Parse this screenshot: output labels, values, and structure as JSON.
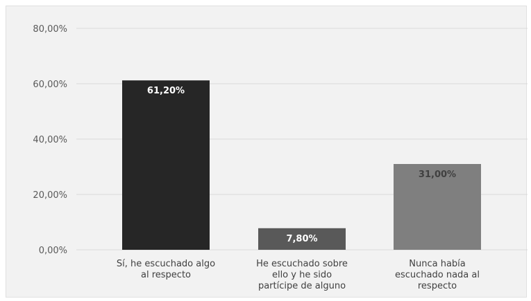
{
  "chart_data": {
    "type": "bar",
    "categories": [
      [
        "Sí, he escuchado algo",
        "al respecto"
      ],
      [
        "He escuchado sobre",
        "ello y he sido",
        "partícipe de alguno"
      ],
      [
        "Nunca había",
        "escuchado nada al",
        "respecto"
      ]
    ],
    "values": [
      61.2,
      7.8,
      31.0
    ],
    "data_labels": [
      "61,20%",
      "7,80%",
      "31,00%"
    ],
    "y_ticks": [
      "0,00%",
      "20,00%",
      "40,00%",
      "60,00%",
      "80,00%"
    ],
    "y_tick_values": [
      0,
      20,
      40,
      60,
      80
    ],
    "ylim": [
      0,
      80
    ],
    "grid": true,
    "legend": "none",
    "bar_colors": [
      "#262626",
      "#595959",
      "#7f7f7f"
    ],
    "label_colors": [
      "#ffffff",
      "#ffffff",
      "#404040"
    ],
    "gridline_color": "#d9d9d9",
    "title": "",
    "xlabel": "",
    "ylabel": ""
  }
}
